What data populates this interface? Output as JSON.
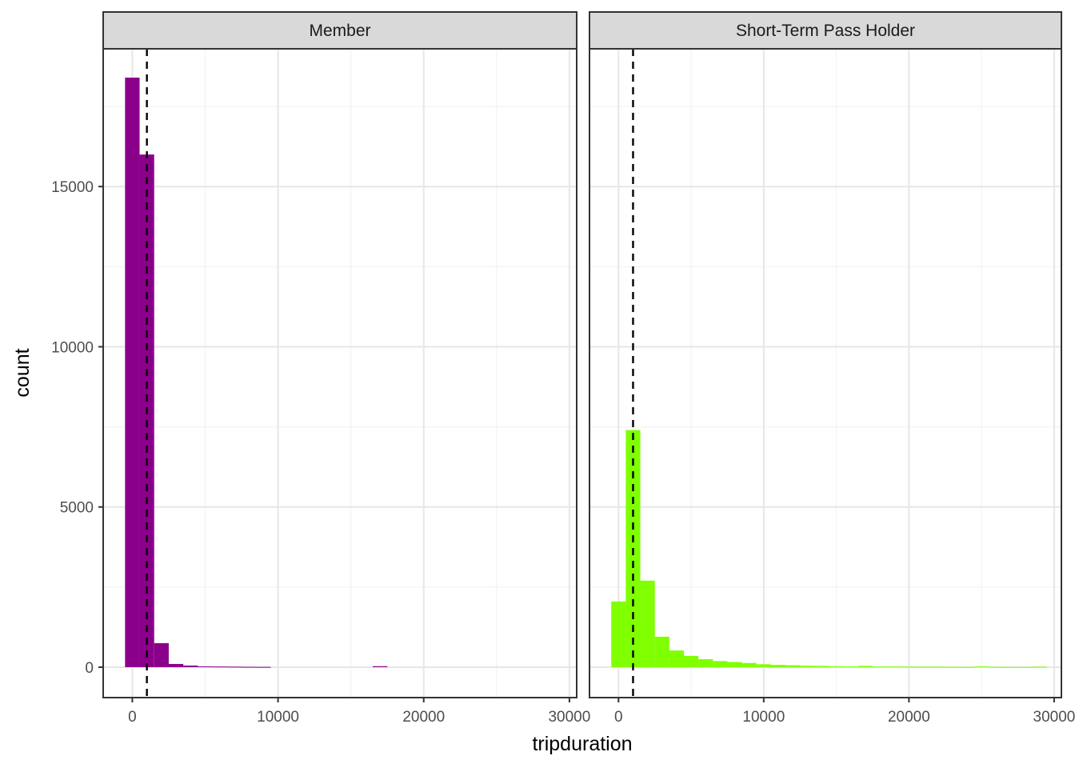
{
  "chart_data": {
    "type": "bar",
    "xlabel": "tripduration",
    "ylabel": "count",
    "xlim": [
      -2000,
      30500
    ],
    "ylim": [
      -950,
      19300
    ],
    "x_ticks": [
      0,
      10000,
      20000,
      30000
    ],
    "y_ticks": [
      0,
      5000,
      10000,
      15000
    ],
    "bin_width": 1000,
    "grid": true,
    "facets": [
      {
        "name": "Member",
        "color": "#8B008B",
        "mean_line_x": 1000,
        "bin_starts": [
          -500,
          500,
          1500,
          2500,
          3500,
          4500,
          5500,
          6500,
          7500,
          8500,
          16500
        ],
        "values": [
          18400,
          16000,
          750,
          100,
          50,
          25,
          20,
          15,
          10,
          8,
          30
        ]
      },
      {
        "name": "Short-Term Pass Holder",
        "color": "#7FFF00",
        "mean_line_x": 1000,
        "bin_starts": [
          -500,
          500,
          1500,
          2500,
          3500,
          4500,
          5500,
          6500,
          7500,
          8500,
          9500,
          10500,
          11500,
          12500,
          13500,
          14500,
          15500,
          16500,
          17500,
          18500,
          19500,
          20500,
          21500,
          22500,
          23500,
          24500,
          25500,
          26500,
          27500,
          28500
        ],
        "values": [
          2050,
          7400,
          2700,
          950,
          520,
          350,
          250,
          190,
          160,
          130,
          90,
          70,
          60,
          45,
          40,
          30,
          25,
          40,
          20,
          20,
          15,
          15,
          15,
          10,
          8,
          25,
          10,
          5,
          5,
          15
        ]
      }
    ]
  }
}
